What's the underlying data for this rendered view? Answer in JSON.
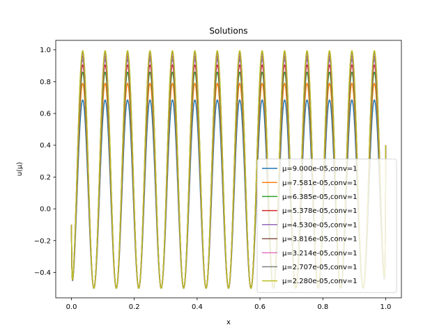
{
  "chart_data": {
    "type": "line",
    "title": "Solutions",
    "xlabel": "x",
    "ylabel": "u(μ)",
    "xlim": [
      -0.05,
      1.05
    ],
    "ylim": [
      -0.56,
      1.06
    ],
    "x_ticks": [
      0.0,
      0.2,
      0.4,
      0.6,
      0.8,
      1.0
    ],
    "x_tick_labels": [
      "0.0",
      "0.2",
      "0.4",
      "0.6",
      "0.8",
      "1.0"
    ],
    "y_ticks": [
      -0.4,
      -0.2,
      0.0,
      0.2,
      0.4,
      0.6,
      0.8,
      1.0
    ],
    "y_tick_labels": [
      "−0.4",
      "−0.2",
      "0.0",
      "0.2",
      "0.4",
      "0.6",
      "0.8",
      "1.0"
    ],
    "grid": false,
    "legend_position": "lower-right",
    "oscillation_period": 0.0714,
    "start_value": -0.1,
    "end_value": 0.4,
    "trough_value": -0.5,
    "series": [
      {
        "name": "μ=9.000e-05,conv=1",
        "color": "#1f77b4",
        "peak": 0.685
      },
      {
        "name": "μ=7.581e-05,conv=1",
        "color": "#ff7f0e",
        "peak": 0.79
      },
      {
        "name": "μ=6.385e-05,conv=1",
        "color": "#2ca02c",
        "peak": 0.86
      },
      {
        "name": "μ=5.378e-05,conv=1",
        "color": "#d62728",
        "peak": 0.905
      },
      {
        "name": "μ=4.530e-05,conv=1",
        "color": "#9467bd",
        "peak": 0.94
      },
      {
        "name": "μ=3.816e-05,conv=1",
        "color": "#8c564b",
        "peak": 0.96
      },
      {
        "name": "μ=3.214e-05,conv=1",
        "color": "#e377c2",
        "peak": 0.975
      },
      {
        "name": "μ=2.707e-05,conv=1",
        "color": "#7f7f7f",
        "peak": 0.985
      },
      {
        "name": "μ=2.280e-05,conv=1",
        "color": "#bcbd22",
        "peak": 0.995
      }
    ]
  }
}
